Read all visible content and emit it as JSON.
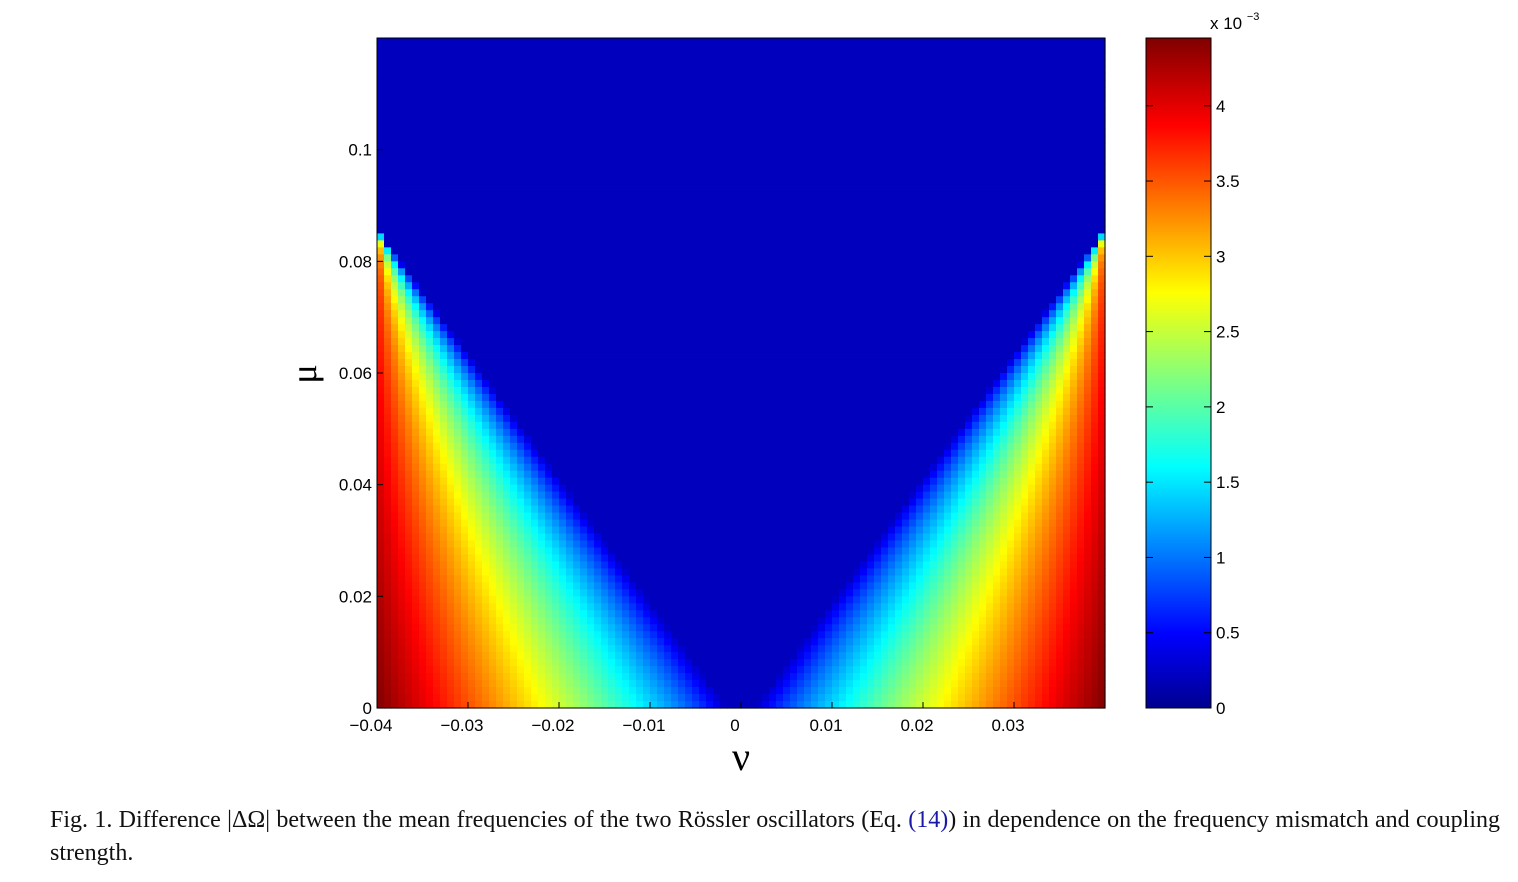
{
  "chart_data": {
    "type": "heatmap",
    "title": "",
    "xlabel": "ν",
    "ylabel": "μ",
    "xlim": [
      -0.04,
      0.04
    ],
    "ylim": [
      0,
      0.12
    ],
    "x_ticks": [
      -0.04,
      -0.03,
      -0.02,
      -0.01,
      0,
      0.01,
      0.02,
      0.03
    ],
    "x_tick_labels": [
      "−0.04",
      "−0.03",
      "−0.02",
      "−0.01",
      "0",
      "0.01",
      "0.02",
      "0.03"
    ],
    "y_ticks": [
      0,
      0.02,
      0.04,
      0.06,
      0.08,
      0.1
    ],
    "y_tick_labels": [
      "0",
      "0.02",
      "0.04",
      "0.06",
      "0.08",
      "0.1"
    ],
    "colorbar": {
      "colormap": "jet",
      "range": [
        0,
        4.45
      ],
      "ticks": [
        0,
        0.5,
        1,
        1.5,
        2,
        2.5,
        3,
        3.5,
        4
      ],
      "tick_labels": [
        "0",
        "0.5",
        "1",
        "1.5",
        "2",
        "2.5",
        "3",
        "3.5",
        "4"
      ],
      "multiplier_prefix": "x 10",
      "multiplier_exponent": "−3"
    },
    "value_description": {
      "zero_region": "|ν| below threshold rising linearly with μ (synchronized tongue)",
      "threshold_nu_at_mu_0": 0.0015,
      "threshold_slope_dnu_dmu": 0.45,
      "max_value_at_corners": 4.45
    }
  },
  "caption": {
    "prefix": "Fig. 1. Difference |ΔΩ| between the mean frequencies of the two Rössler oscillators (Eq. ",
    "link": "(14)",
    "suffix": ") in dependence on the frequency mismatch and coupling strength."
  }
}
